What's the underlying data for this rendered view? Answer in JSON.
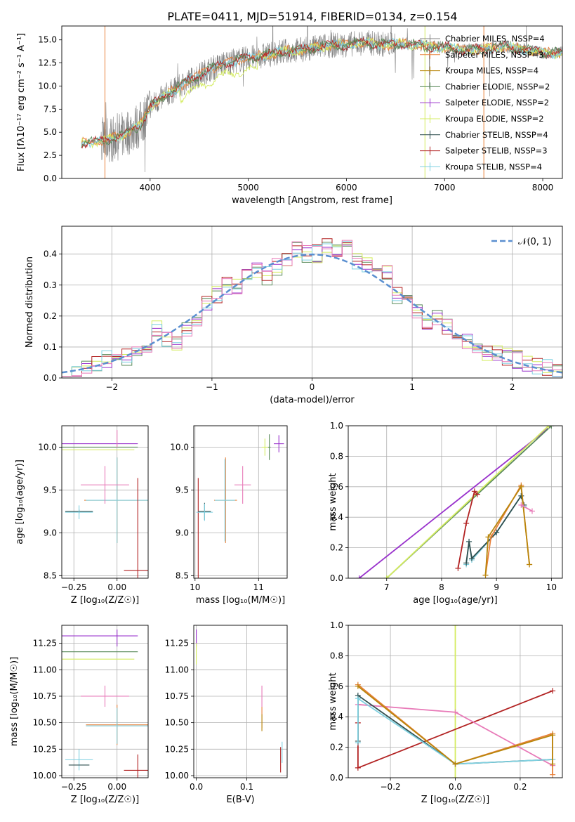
{
  "figure": {
    "title": "PLATE=0411, MJD=51914, FIBERID=0134, z=0.154"
  },
  "colors": {
    "chabrier_miles": "#808080",
    "salpeter_miles": "#e8803a",
    "kroupa_miles": "#b8860b",
    "chabrier_elodie": "#5a8a5a",
    "salpeter_elodie": "#9932cc",
    "kroupa_elodie": "#d4ec60",
    "chabrier_stelib": "#2f4f4f",
    "salpeter_stelib": "#b22222",
    "kroupa_stelib": "#7ed0e0",
    "pink": "#e87ab8",
    "normal_curve": "#5a8fd0"
  },
  "chart_data": [
    {
      "id": "spectrum",
      "type": "line",
      "xlabel": "wavelength [Angstrom, rest frame]",
      "ylabel": "Flux [fλ10⁻¹⁷ erg cm⁻² s⁻¹ A⁻¹]",
      "xlim": [
        3100,
        8200
      ],
      "ylim": [
        0,
        16.5
      ],
      "xticks": [
        4000,
        5000,
        6000,
        7000,
        8000
      ],
      "yticks": [
        0.0,
        2.5,
        5.0,
        7.5,
        10.0,
        12.5,
        15.0
      ],
      "legend": [
        "Chabrier MILES, NSSP=4",
        "Salpeter MILES, NSSP=3",
        "Kroupa MILES, NSSP=4",
        "Chabrier ELODIE, NSSP=2",
        "Salpeter ELODIE, NSSP=2",
        "Kroupa ELODIE, NSSP=2",
        "Chabrier STELIB, NSSP=4",
        "Salpeter STELIB, NSSP=3",
        "Kroupa STELIB, NSSP=4"
      ],
      "continuum_x": [
        3300,
        3500,
        3700,
        3900,
        4000,
        4200,
        4400,
        4600,
        4800,
        5000,
        5200,
        5400,
        5600,
        5800,
        6000,
        6200,
        6400,
        6600,
        6800,
        7000,
        7200,
        7400,
        7600,
        7800,
        8000
      ],
      "continuum_y": [
        3.9,
        4.0,
        4.6,
        5.8,
        7.8,
        9.3,
        10.6,
        11.8,
        12.6,
        13.0,
        13.4,
        13.8,
        14.0,
        14.4,
        14.5,
        14.7,
        14.5,
        14.6,
        14.3,
        14.2,
        13.9,
        14.0,
        14.3,
        14.0,
        13.6
      ]
    },
    {
      "id": "residuals",
      "type": "histogram",
      "xlabel": "(data-model)/error",
      "ylabel": "Normed distribution",
      "xlim": [
        -2.5,
        2.5
      ],
      "ylim": [
        0,
        0.49
      ],
      "xticks": [
        -2,
        -1,
        0,
        1,
        2
      ],
      "yticks": [
        0.0,
        0.1,
        0.2,
        0.3,
        0.4
      ],
      "legend": [
        "𝒩(0, 1)"
      ],
      "bins": [
        -2.5,
        -2.4,
        -2.3,
        -2.2,
        -2.1,
        -2.0,
        -1.9,
        -1.8,
        -1.7,
        -1.6,
        -1.5,
        -1.4,
        -1.3,
        -1.2,
        -1.1,
        -1.0,
        -0.9,
        -0.8,
        -0.7,
        -0.6,
        -0.5,
        -0.4,
        -0.3,
        -0.2,
        -0.1,
        0.0,
        0.1,
        0.2,
        0.3,
        0.4,
        0.5,
        0.6,
        0.7,
        0.8,
        0.9,
        1.0,
        1.1,
        1.2,
        1.3,
        1.4,
        1.5,
        1.6,
        1.7,
        1.8,
        1.9,
        2.0,
        2.1,
        2.2,
        2.3,
        2.4,
        2.5
      ],
      "hist_values": [
        0.03,
        0.03,
        0.04,
        0.05,
        0.06,
        0.08,
        0.07,
        0.09,
        0.1,
        0.16,
        0.13,
        0.12,
        0.16,
        0.18,
        0.24,
        0.27,
        0.3,
        0.29,
        0.33,
        0.35,
        0.33,
        0.36,
        0.38,
        0.41,
        0.4,
        0.4,
        0.43,
        0.42,
        0.42,
        0.38,
        0.37,
        0.33,
        0.34,
        0.27,
        0.24,
        0.22,
        0.18,
        0.19,
        0.17,
        0.14,
        0.12,
        0.1,
        0.08,
        0.08,
        0.07,
        0.06,
        0.05,
        0.04,
        0.03,
        0.02
      ],
      "normal_curve": {
        "mean": 0,
        "sigma": 1
      }
    },
    {
      "id": "age_vs_Z",
      "type": "errorbar",
      "xlabel": "Z [log₁₀(Z/Z☉)]",
      "ylabel": "age  [log₁₀(age/yr)]",
      "xlim": [
        -0.32,
        0.18
      ],
      "ylim": [
        8.47,
        10.25
      ],
      "xticks": [
        -0.25,
        0.0
      ],
      "xticklabels": [
        "−0.25",
        "0.00"
      ],
      "yticks": [
        8.5,
        9.0,
        9.5,
        10.0
      ],
      "yticklabels": [
        "8.5",
        "9.0",
        "9.5",
        "10.0"
      ],
      "points": [
        {
          "x": -0.22,
          "y": 9.25,
          "xerr": 0.08,
          "yerr": 0.02,
          "color": "chabrier_stelib"
        },
        {
          "x": -0.22,
          "y": 9.24,
          "xerr": 0.08,
          "yerr": 0.08,
          "color": "kroupa_stelib"
        },
        {
          "x": 0.0,
          "y": 9.38,
          "xerr": 0.19,
          "yerr": 0.5,
          "color": "salpeter_miles"
        },
        {
          "x": 0.0,
          "y": 9.38,
          "xerr": 0.18,
          "yerr": 0.5,
          "color": "kroupa_stelib"
        },
        {
          "x": -0.07,
          "y": 9.56,
          "xerr": 0.14,
          "yerr": 0.22,
          "color": "pink"
        },
        {
          "x": 0.12,
          "y": 8.56,
          "xerr": 0.08,
          "yerr": 1.08,
          "color": "salpeter_stelib"
        },
        {
          "x": -0.12,
          "y": 10.04,
          "xerr": 0.24,
          "yerr": 0.0,
          "color": "salpeter_elodie"
        },
        {
          "x": -0.12,
          "y": 10.0,
          "xerr": 0.24,
          "yerr": 0.0,
          "color": "chabrier_elodie"
        },
        {
          "x": -0.12,
          "y": 9.97,
          "xerr": 0.22,
          "yerr": 0.0,
          "color": "kroupa_elodie"
        },
        {
          "x": 0.0,
          "y": 10.1,
          "xerr": 0.0,
          "yerr": 0.1,
          "color": "pink"
        }
      ]
    },
    {
      "id": "age_vs_mass",
      "type": "errorbar",
      "xlabel": "mass [log₁₀(M/M☉)]",
      "ylabel": "",
      "xlim": [
        9.98,
        11.45
      ],
      "ylim": [
        8.47,
        10.25
      ],
      "xticks": [
        10,
        11
      ],
      "xticklabels": [
        "10",
        "11"
      ],
      "yticks": [
        8.5,
        9.0,
        9.5,
        10.0
      ],
      "yticklabels": [
        "8.5",
        "9.0",
        "9.5",
        "10.0"
      ],
      "points": [
        {
          "x": 10.05,
          "y": 8.56,
          "xerr": 0.0,
          "yerr": 1.08,
          "color": "salpeter_stelib"
        },
        {
          "x": 10.15,
          "y": 9.25,
          "xerr": 0.1,
          "yerr": 0.1,
          "color": "chabrier_stelib"
        },
        {
          "x": 10.15,
          "y": 9.24,
          "xerr": 0.13,
          "yerr": 0.1,
          "color": "kroupa_stelib"
        },
        {
          "x": 10.48,
          "y": 9.38,
          "xerr": 0.18,
          "yerr": 0.5,
          "color": "salpeter_miles"
        },
        {
          "x": 10.47,
          "y": 9.38,
          "xerr": 0.16,
          "yerr": 0.48,
          "color": "kroupa_stelib"
        },
        {
          "x": 10.75,
          "y": 9.56,
          "xerr": 0.13,
          "yerr": 0.22,
          "color": "pink"
        },
        {
          "x": 11.1,
          "y": 10.0,
          "xerr": 0.05,
          "yerr": 0.1,
          "color": "kroupa_elodie"
        },
        {
          "x": 11.17,
          "y": 10.0,
          "xerr": 0.02,
          "yerr": 0.15,
          "color": "chabrier_elodie"
        },
        {
          "x": 11.32,
          "y": 10.04,
          "xerr": 0.08,
          "yerr": 0.1,
          "color": "salpeter_elodie"
        }
      ]
    },
    {
      "id": "mass_weight_vs_age",
      "type": "line",
      "xlabel": "age  [log₁₀(age/yr)]",
      "ylabel": "mass weight",
      "xlim": [
        6.3,
        10.2
      ],
      "ylim": [
        0,
        1.0
      ],
      "xticks": [
        7,
        8,
        9,
        10
      ],
      "xticklabels": [
        "7",
        "8",
        "9",
        "10"
      ],
      "yticks": [
        0.0,
        0.2,
        0.4,
        0.6,
        0.8,
        1.0
      ],
      "yticklabels": [
        "0.0",
        "0.2",
        "0.4",
        "0.6",
        "0.8",
        "1.0"
      ],
      "series": [
        {
          "color": "salpeter_elodie",
          "x": [
            6.5,
            10.0
          ],
          "y": [
            0.0,
            1.0
          ]
        },
        {
          "color": "chabrier_elodie",
          "x": [
            7.0,
            10.0
          ],
          "y": [
            0.0,
            1.0
          ]
        },
        {
          "color": "kroupa_elodie",
          "x": [
            7.0,
            9.95
          ],
          "y": [
            0.0,
            1.0
          ]
        },
        {
          "color": "salpeter_stelib",
          "x": [
            8.3,
            8.45,
            8.6,
            8.65
          ],
          "y": [
            0.065,
            0.36,
            0.57,
            0.55
          ]
        },
        {
          "color": "kroupa_stelib",
          "x": [
            8.45,
            8.5,
            8.55,
            9.0,
            9.45,
            9.5
          ],
          "y": [
            0.09,
            0.24,
            0.12,
            0.3,
            0.54,
            0.47
          ]
        },
        {
          "color": "chabrier_stelib",
          "x": [
            8.45,
            8.5,
            8.55,
            9.0,
            9.45,
            9.5
          ],
          "y": [
            0.1,
            0.24,
            0.13,
            0.3,
            0.54,
            0.48
          ]
        },
        {
          "color": "salpeter_miles",
          "x": [
            8.8,
            8.9,
            9.45,
            9.6
          ],
          "y": [
            0.02,
            0.27,
            0.61,
            0.09
          ]
        },
        {
          "color": "kroupa_miles",
          "x": [
            8.8,
            8.85,
            9.45,
            9.6
          ],
          "y": [
            0.02,
            0.27,
            0.6,
            0.09
          ]
        },
        {
          "color": "pink",
          "x": [
            9.45,
            9.65
          ],
          "y": [
            0.48,
            0.44
          ]
        }
      ]
    },
    {
      "id": "mass_vs_Z",
      "type": "errorbar",
      "xlabel": "Z [log₁₀(Z/Z☉)]",
      "ylabel": "mass [log₁₀(M/M☉)]",
      "xlim": [
        -0.32,
        0.18
      ],
      "ylim": [
        9.98,
        11.42
      ],
      "xticks": [
        -0.25,
        0.0
      ],
      "xticklabels": [
        "−0.25",
        "0.00"
      ],
      "yticks": [
        10.0,
        10.25,
        10.5,
        10.75,
        11.0,
        11.25
      ],
      "yticklabels": [
        "10.00",
        "10.25",
        "10.50",
        "10.75",
        "11.00",
        "11.25"
      ],
      "points": [
        {
          "x": -0.12,
          "y": 11.32,
          "xerr": 0.24,
          "yerr": 0.0,
          "color": "salpeter_elodie"
        },
        {
          "x": -0.12,
          "y": 11.17,
          "xerr": 0.24,
          "yerr": 0.0,
          "color": "chabrier_elodie"
        },
        {
          "x": -0.12,
          "y": 11.1,
          "xerr": 0.22,
          "yerr": 0.0,
          "color": "kroupa_elodie"
        },
        {
          "x": 0.0,
          "y": 11.3,
          "xerr": 0.0,
          "yerr": 0.08,
          "color": "salpeter_elodie"
        },
        {
          "x": -0.07,
          "y": 10.75,
          "xerr": 0.14,
          "yerr": 0.1,
          "color": "pink"
        },
        {
          "x": 0.0,
          "y": 10.48,
          "xerr": 0.18,
          "yerr": 0.19,
          "color": "salpeter_miles"
        },
        {
          "x": 0.0,
          "y": 10.47,
          "xerr": 0.18,
          "yerr": 0.17,
          "color": "kroupa_stelib"
        },
        {
          "x": -0.22,
          "y": 10.15,
          "xerr": 0.08,
          "yerr": 0.1,
          "color": "kroupa_stelib"
        },
        {
          "x": -0.22,
          "y": 10.1,
          "xerr": 0.06,
          "yerr": 0.0,
          "color": "chabrier_stelib"
        },
        {
          "x": 0.12,
          "y": 10.05,
          "xerr": 0.08,
          "yerr": 0.15,
          "color": "salpeter_stelib"
        }
      ]
    },
    {
      "id": "mass_vs_EBV",
      "type": "errorbar",
      "xlabel": "E(B-V)",
      "ylabel": "",
      "xlim": [
        -0.005,
        0.18
      ],
      "ylim": [
        9.98,
        11.42
      ],
      "xticks": [
        0.0,
        0.1
      ],
      "xticklabels": [
        "0.0",
        "0.1"
      ],
      "yticks": [
        10.0,
        10.25,
        10.5,
        10.75,
        11.0,
        11.25
      ],
      "yticklabels": [
        "10.00",
        "10.25",
        "10.50",
        "10.75",
        "11.00",
        "11.25"
      ],
      "points": [
        {
          "x": 0.0,
          "y": 11.3,
          "xerr": 0.0,
          "yerr": 0.08,
          "color": "salpeter_elodie"
        },
        {
          "x": 0.0,
          "y": 11.15,
          "xerr": 0.0,
          "yerr": 0.1,
          "color": "kroupa_elodie"
        },
        {
          "x": 0.13,
          "y": 10.75,
          "xerr": 0.0,
          "yerr": 0.1,
          "color": "pink"
        },
        {
          "x": 0.13,
          "y": 10.55,
          "xerr": 0.0,
          "yerr": 0.1,
          "color": "salpeter_miles"
        },
        {
          "x": 0.13,
          "y": 10.5,
          "xerr": 0.0,
          "yerr": 0.08,
          "color": "kroupa_miles"
        },
        {
          "x": 0.17,
          "y": 10.22,
          "xerr": 0.0,
          "yerr": 0.1,
          "color": "kroupa_stelib"
        },
        {
          "x": 0.167,
          "y": 10.15,
          "xerr": 0.0,
          "yerr": 0.12,
          "color": "salpeter_stelib"
        }
      ]
    },
    {
      "id": "mass_weight_vs_Z",
      "type": "line",
      "xlabel": "Z [log₁₀(Z/Z☉)]",
      "ylabel": "mass weight",
      "xlim": [
        -0.33,
        0.33
      ],
      "ylim": [
        0,
        1.0
      ],
      "xticks": [
        -0.2,
        0.0,
        0.2
      ],
      "xticklabels": [
        "−0.2",
        "0.0",
        "0.2"
      ],
      "yticks": [
        0.0,
        0.2,
        0.4,
        0.6,
        0.8,
        1.0
      ],
      "yticklabels": [
        "0.0",
        "0.2",
        "0.4",
        "0.6",
        "0.8",
        "1.0"
      ],
      "series": [
        {
          "color": "kroupa_elodie",
          "x": [
            0.0,
            0.0
          ],
          "y": [
            0.0,
            1.0
          ]
        },
        {
          "color": "salpeter_stelib",
          "x": [
            -0.3,
            -0.3,
            0.3
          ],
          "y": [
            0.36,
            0.065,
            0.57
          ]
        },
        {
          "color": "pink",
          "x": [
            -0.3,
            0.0,
            0.3
          ],
          "y": [
            0.48,
            0.43,
            0.08
          ]
        },
        {
          "color": "chabrier_stelib",
          "x": [
            -0.3,
            -0.3,
            0.0,
            0.3
          ],
          "y": [
            0.24,
            0.54,
            0.09,
            0.12
          ]
        },
        {
          "color": "kroupa_stelib",
          "x": [
            -0.3,
            -0.3,
            0.0,
            0.3
          ],
          "y": [
            0.23,
            0.52,
            0.09,
            0.12
          ]
        },
        {
          "color": "salpeter_miles",
          "x": [
            -0.3,
            0.0,
            0.3,
            0.3
          ],
          "y": [
            0.61,
            0.09,
            0.29,
            0.02
          ]
        },
        {
          "color": "kroupa_miles",
          "x": [
            -0.3,
            0.0,
            0.3,
            0.3
          ],
          "y": [
            0.6,
            0.09,
            0.28,
            0.09
          ]
        }
      ]
    }
  ]
}
